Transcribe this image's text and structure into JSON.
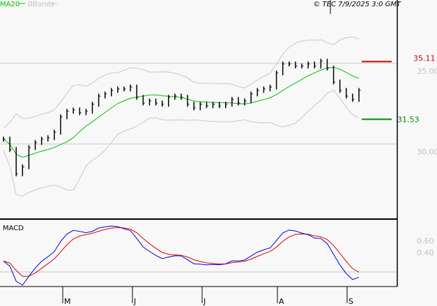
{
  "header": {
    "legend_ma": "MA20",
    "legend_bb": "BBands",
    "copyright": "© TEC 7/9/2025 3:0 GMT"
  },
  "colors": {
    "ma": "#00c000",
    "bb": "#c8c8c8",
    "bars": "#000000",
    "resistance": "#cc0000",
    "support": "#008800",
    "macd": "#0000dd",
    "signal": "#dd0000",
    "axis_label": "#c0c0c0"
  },
  "chart_data": [
    {
      "type": "ohlc-bar",
      "title": "",
      "overlays": [
        "MA20",
        "BBands"
      ],
      "x_tick_labels": [
        "M",
        "J",
        "J",
        "A",
        "S"
      ],
      "y_tick_labels": [
        "35.00",
        "30.00"
      ],
      "y_ticks": [
        35,
        30
      ],
      "ylim": [
        25.4,
        38.1
      ],
      "closes": [
        30.3,
        29.66,
        28.15,
        28.58,
        29.78,
        30.09,
        30.3,
        30.39,
        30.73,
        31.68,
        32.03,
        32.11,
        31.94,
        32.03,
        32.46,
        32.97,
        33.1,
        33.32,
        33.41,
        33.41,
        33.53,
        32.89,
        32.54,
        32.67,
        32.54,
        32.46,
        32.89,
        32.97,
        32.89,
        32.46,
        32.24,
        32.46,
        32.37,
        32.46,
        32.37,
        32.46,
        32.76,
        32.54,
        32.67,
        33.1,
        33.32,
        33.41,
        33.53,
        34.4,
        34.96,
        34.96,
        34.83,
        34.83,
        34.96,
        34.83,
        35.13,
        34.7,
        33.84,
        33.32,
        32.97,
        32.76,
        33.32
      ],
      "resistance": {
        "value": 35.11,
        "label": "35.11"
      },
      "support": {
        "value": 31.53,
        "label": "31.53"
      }
    },
    {
      "type": "line",
      "title": "MACD",
      "y_tick_labels": [
        "0.60",
        "0.40"
      ],
      "y_ticks": [
        0.6,
        0.4
      ],
      "zero_line": true
    }
  ]
}
